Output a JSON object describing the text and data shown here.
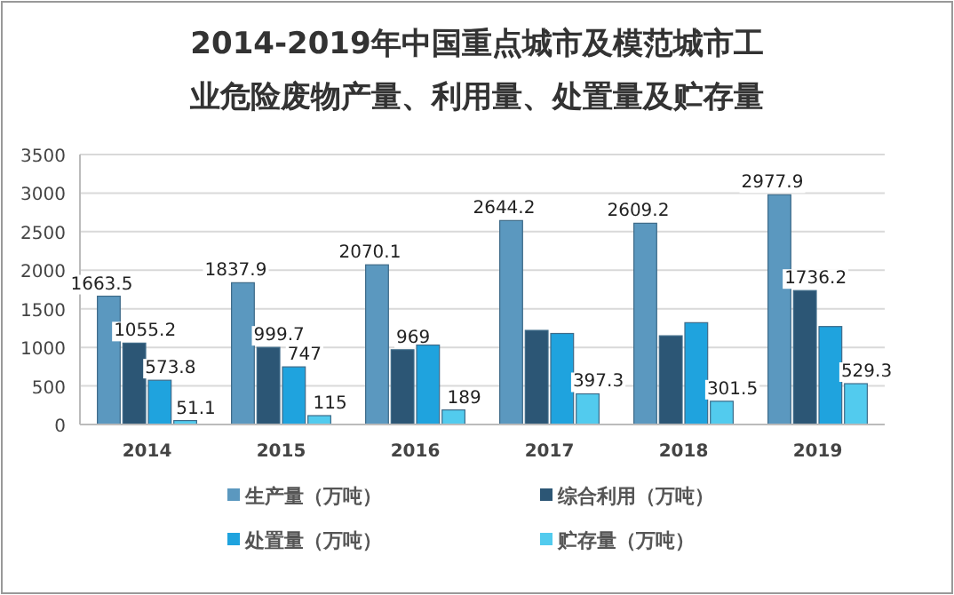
{
  "chart_data": {
    "type": "bar",
    "title": "2014-2019年中国重点城市及模范城市工业危险废物产量、利用量、处置量及贮存量",
    "categories": [
      "2014",
      "2015",
      "2016",
      "2017",
      "2018",
      "2019"
    ],
    "series": [
      {
        "name": "生产量（万吨）",
        "color": "#5b98bf",
        "values": [
          1663.5,
          1837.9,
          2070.1,
          2644.2,
          2609.2,
          2977.9
        ],
        "value_labels": [
          "1663.5",
          "1837.9",
          "2070.1",
          "2644.2",
          "2609.2",
          "2977.9"
        ]
      },
      {
        "name": "综合利用（万吨）",
        "color": "#2c5675",
        "values": [
          1055.2,
          999.7,
          969,
          1220,
          1150,
          1736.2
        ],
        "value_labels": [
          "1055.2",
          "999.7",
          "969",
          null,
          null,
          "1736.2"
        ]
      },
      {
        "name": "处置量（万吨）",
        "color": "#1fa3de",
        "values": [
          573.8,
          747,
          1030,
          1180,
          1320,
          1270
        ],
        "value_labels": [
          "573.8",
          "747",
          null,
          null,
          null,
          null
        ]
      },
      {
        "name": "贮存量（万吨）",
        "color": "#52cbee",
        "values": [
          51.1,
          115,
          189,
          397.3,
          301.5,
          529.3
        ],
        "value_labels": [
          "51.1",
          "115",
          "189",
          "397.3",
          "301.5",
          "529.3"
        ]
      }
    ],
    "ylim": [
      0,
      3500
    ],
    "yticks": [
      0,
      500,
      1000,
      1500,
      2000,
      2500,
      3000,
      3500
    ],
    "grid": "y",
    "legend": "bottom"
  }
}
